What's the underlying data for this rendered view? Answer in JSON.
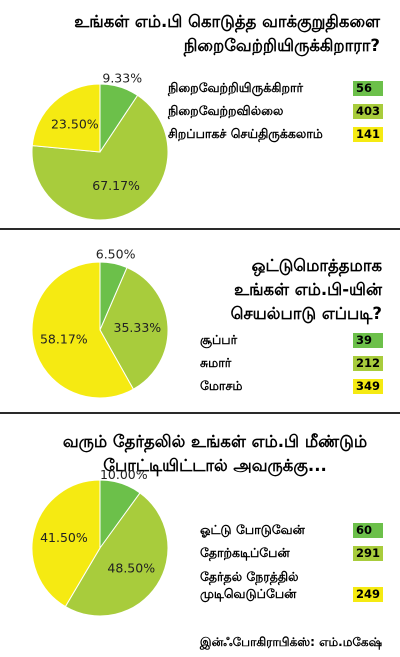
{
  "chart_data": [
    {
      "type": "pie",
      "title": "உங்கள் எம்.பி கொடுத்த வாக்குறுதிகளை நிறைவேற்றியிருக்கிறாரா?",
      "slices": [
        {
          "label": "நிறைவேற்றியிருக்கிறார்",
          "count": 56,
          "percent": "9.33%",
          "value": 9.33,
          "color": "#6cc04a"
        },
        {
          "label": "நிறைவேற்றவில்லை",
          "count": 403,
          "percent": "67.17%",
          "value": 67.17,
          "color": "#a8cc3c"
        },
        {
          "label": "சிறப்பாகச் செய்திருக்கலாம்",
          "count": 141,
          "percent": "23.50%",
          "value": 23.5,
          "color": "#f5ea12"
        }
      ]
    },
    {
      "type": "pie",
      "title": "ஒட்டுமொத்தமாக உங்கள் எம்.பி-யின் செயல்பாடு எப்படி?",
      "slices": [
        {
          "label": "சூப்பர்",
          "count": 39,
          "percent": "6.50%",
          "value": 6.5,
          "color": "#6cc04a"
        },
        {
          "label": "சுமார்",
          "count": 212,
          "percent": "35.33%",
          "value": 35.33,
          "color": "#a8cc3c"
        },
        {
          "label": "மோசம்",
          "count": 349,
          "percent": "58.17%",
          "value": 58.17,
          "color": "#f5ea12"
        }
      ]
    },
    {
      "type": "pie",
      "title": "வரும் தேர்தலில் உங்கள் எம்.பி மீண்டும் போட்டியிட்டால் அவருக்கு...",
      "slices": [
        {
          "label": "ஓட்டு போடுவேன்",
          "count": 60,
          "percent": "10.00%",
          "value": 10.0,
          "color": "#6cc04a"
        },
        {
          "label": "தோற்கடிப்பேன்",
          "count": 291,
          "percent": "48.50%",
          "value": 48.5,
          "color": "#a8cc3c"
        },
        {
          "label": "தேர்தல் நேரத்தில் முடிவெடுப்பேன்",
          "count": 249,
          "percent": "41.50%",
          "value": 41.5,
          "color": "#f5ea12"
        }
      ]
    }
  ],
  "footer": {
    "credit": "இன்ஃபோகிராபிக்ஸ்: எம்.மகேஷ்"
  }
}
